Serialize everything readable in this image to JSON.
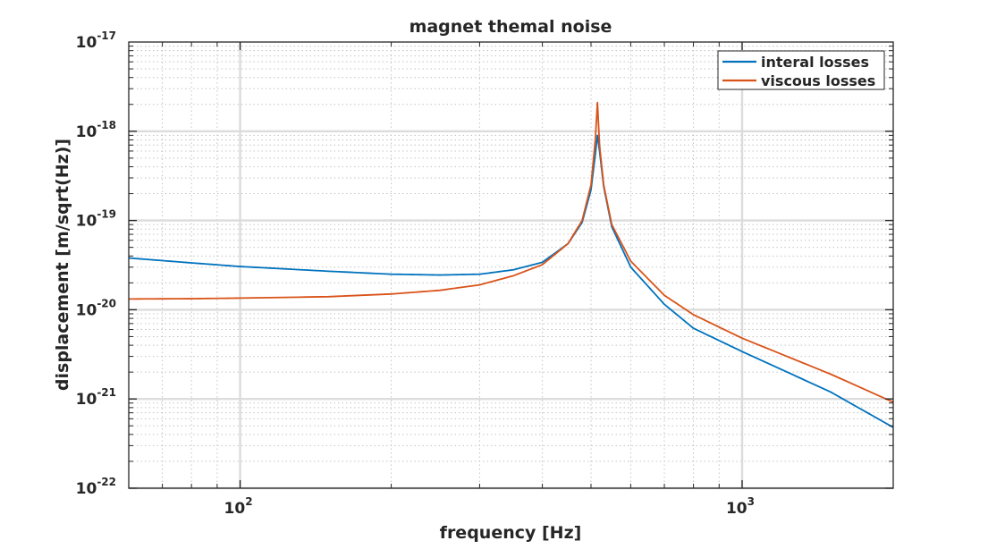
{
  "chart_data": {
    "type": "line",
    "title": "magnet themal noise",
    "xlabel": "frequency [Hz]",
    "ylabel": "displacement [m/sqrt(Hz)]",
    "xscale": "log",
    "yscale": "log",
    "xlim": [
      60,
      2000
    ],
    "ylim": [
      1e-22,
      1e-17
    ],
    "grid": true,
    "minor_grid": true,
    "legend_position": "top-right",
    "x_ticks": [
      {
        "value": 100,
        "base": "10",
        "exp": "2"
      },
      {
        "value": 1000,
        "base": "10",
        "exp": "3"
      }
    ],
    "y_ticks": [
      {
        "value": 1e-22,
        "base": "10",
        "exp": "-22"
      },
      {
        "value": 1e-21,
        "base": "10",
        "exp": "-21"
      },
      {
        "value": 1e-20,
        "base": "10",
        "exp": "-20"
      },
      {
        "value": 1e-19,
        "base": "10",
        "exp": "-19"
      },
      {
        "value": 1e-18,
        "base": "10",
        "exp": "-18"
      },
      {
        "value": 1e-17,
        "base": "10",
        "exp": "-17"
      }
    ],
    "series": [
      {
        "name": "interal losses",
        "color": "#0072bd",
        "x": [
          60,
          80,
          100,
          150,
          200,
          250,
          300,
          350,
          400,
          450,
          480,
          500,
          510,
          515,
          520,
          530,
          550,
          600,
          700,
          800,
          1000,
          1500,
          2000
        ],
        "y": [
          3.8e-20,
          3.35e-20,
          3.05e-20,
          2.7e-20,
          2.5e-20,
          2.45e-20,
          2.5e-20,
          2.8e-20,
          3.4e-20,
          5.5e-20,
          9.5e-20,
          2.2e-19,
          5.5e-19,
          9e-19,
          6e-19,
          2.4e-19,
          8.5e-20,
          3e-20,
          1.15e-20,
          6.2e-21,
          3.4e-21,
          1.2e-21,
          4.8e-22
        ]
      },
      {
        "name": "viscous losses",
        "color": "#d95319",
        "x": [
          60,
          80,
          100,
          150,
          200,
          250,
          300,
          350,
          400,
          450,
          480,
          500,
          510,
          515,
          520,
          530,
          550,
          600,
          700,
          800,
          1000,
          1500,
          2000
        ],
        "y": [
          1.32e-20,
          1.33e-20,
          1.35e-20,
          1.4e-20,
          1.5e-20,
          1.65e-20,
          1.9e-20,
          2.4e-20,
          3.2e-20,
          5.5e-20,
          1e-19,
          2.5e-19,
          8e-19,
          2.1e-18,
          7e-19,
          2.5e-19,
          9e-20,
          3.5e-20,
          1.45e-20,
          8.8e-21,
          4.8e-21,
          1.9e-21,
          9.2e-22
        ]
      }
    ]
  }
}
